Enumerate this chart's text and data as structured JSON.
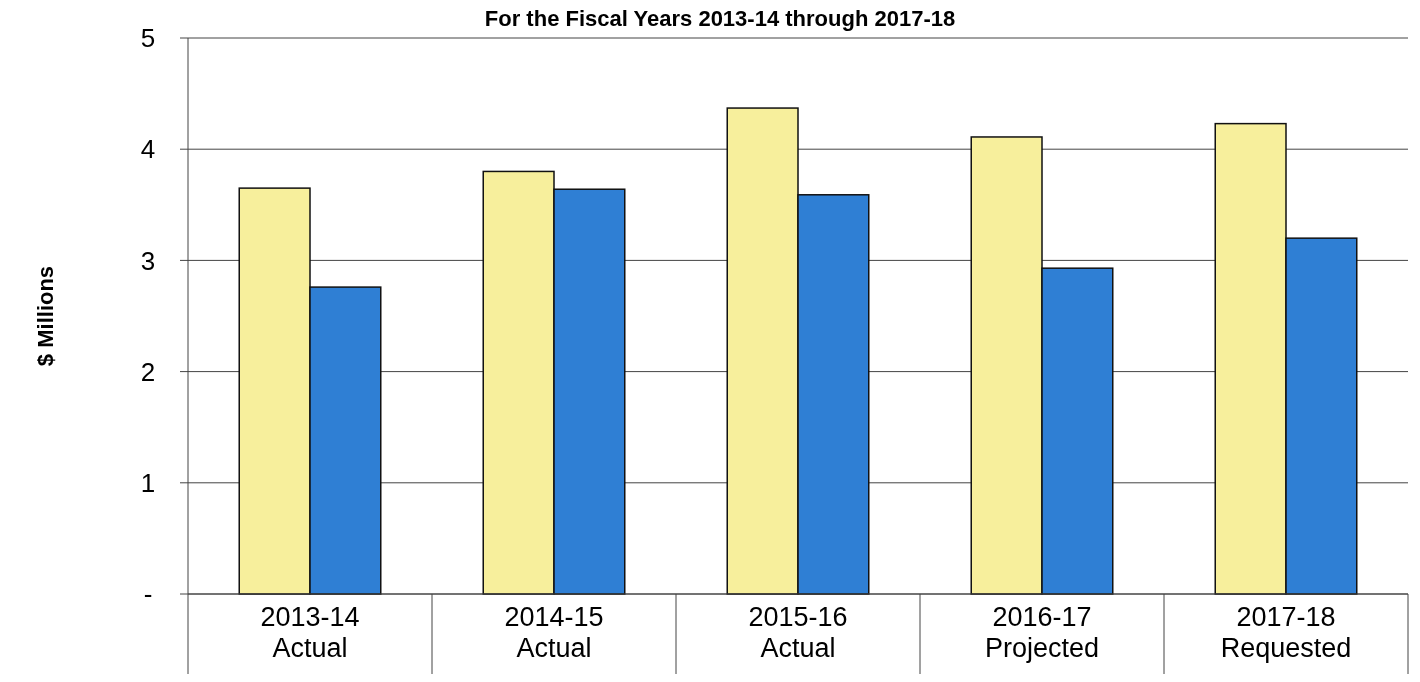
{
  "chart_data": {
    "type": "bar",
    "title": "For the Fiscal Years 2013-14 through 2017-18",
    "ylabel": "$ Millions",
    "categories": [
      "2013-14\nActual",
      "2014-15\nActual",
      "2015-16\nActual",
      "2016-17\nProjected",
      "2017-18\nRequested"
    ],
    "series": [
      {
        "color": "#f7ef9c",
        "values": [
          3.65,
          3.8,
          4.37,
          4.11,
          4.23
        ]
      },
      {
        "color": "#2f7fd4",
        "values": [
          2.76,
          3.64,
          3.59,
          2.93,
          3.2
        ]
      }
    ],
    "ylim": [
      0,
      5
    ],
    "yticks": [
      {
        "value": 0,
        "label": "-"
      },
      1,
      2,
      3,
      4,
      5
    ],
    "grid": "y"
  }
}
